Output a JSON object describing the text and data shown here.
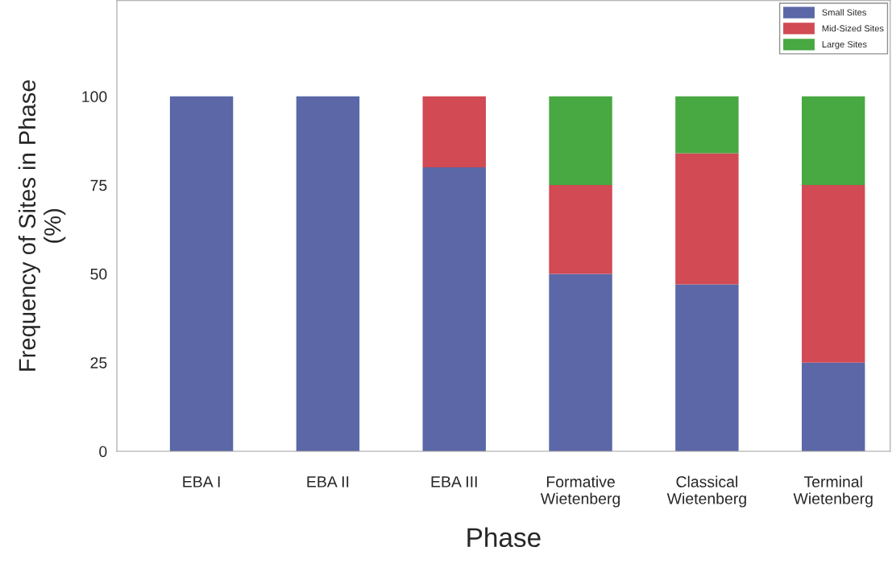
{
  "chart_data": {
    "type": "bar",
    "stacked": true,
    "categories": [
      "EBA I",
      "EBA II",
      "EBA III",
      "Formative\nWietenberg",
      "Classical\nWietenberg",
      "Terminal\nWietenberg"
    ],
    "series": [
      {
        "name": "Small Sites",
        "color": "#5b67a7",
        "values": [
          100,
          100,
          80,
          50,
          47,
          25
        ]
      },
      {
        "name": "Mid-Sized Sites",
        "color": "#d14a54",
        "values": [
          0,
          0,
          20,
          25,
          37,
          50
        ]
      },
      {
        "name": "Large Sites",
        "color": "#48a842",
        "values": [
          0,
          0,
          0,
          25,
          16,
          25
        ]
      }
    ],
    "xlabel": "Phase",
    "ylabel": "Frequency of Sites in Phase\n(%)",
    "ylim": [
      0,
      127
    ],
    "yticks": [
      0,
      25,
      50,
      75,
      100
    ],
    "grid": false,
    "legend": "top right"
  }
}
